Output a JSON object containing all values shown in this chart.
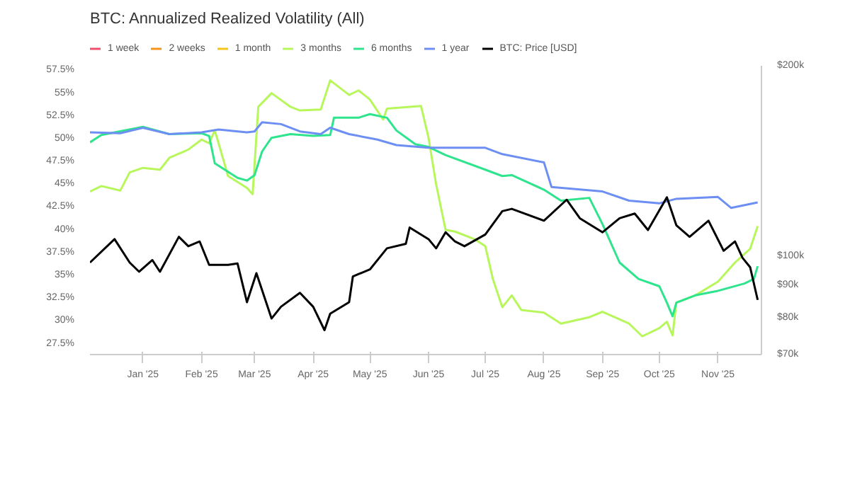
{
  "chart_data": {
    "type": "line",
    "title": "BTC: Annualized Realized Volatility (All)",
    "legend": "top",
    "grid": false,
    "line_style": "solid",
    "marker": "none",
    "xlim": [
      "2024-12-04",
      "2025-11-24"
    ],
    "xticks": [
      {
        "value": "2025-01-01",
        "label": "Jan '25"
      },
      {
        "value": "2025-02-01",
        "label": "Feb '25"
      },
      {
        "value": "2025-03-01",
        "label": "Mar '25"
      },
      {
        "value": "2025-04-01",
        "label": "Apr '25"
      },
      {
        "value": "2025-05-01",
        "label": "May '25"
      },
      {
        "value": "2025-06-01",
        "label": "Jun '25"
      },
      {
        "value": "2025-07-01",
        "label": "Jul '25"
      },
      {
        "value": "2025-08-01",
        "label": "Aug '25"
      },
      {
        "value": "2025-09-01",
        "label": "Sep '25"
      },
      {
        "value": "2025-10-01",
        "label": "Oct '25"
      },
      {
        "value": "2025-11-01",
        "label": "Nov '25"
      }
    ],
    "ylim": [
      26.3,
      58
    ],
    "yticks": [
      {
        "value": 27.5,
        "label": "27.5%"
      },
      {
        "value": 30,
        "label": "30%"
      },
      {
        "value": 32.5,
        "label": "32.5%"
      },
      {
        "value": 35,
        "label": "35%"
      },
      {
        "value": 37.5,
        "label": "37.5%"
      },
      {
        "value": 40,
        "label": "40%"
      },
      {
        "value": 42.5,
        "label": "42.5%"
      },
      {
        "value": 45,
        "label": "45%"
      },
      {
        "value": 47.5,
        "label": "47.5%"
      },
      {
        "value": 50,
        "label": "50%"
      },
      {
        "value": 52.5,
        "label": "52.5%"
      },
      {
        "value": 55,
        "label": "55%"
      },
      {
        "value": 57.5,
        "label": "57.5%"
      }
    ],
    "log": "y2",
    "y2lim": [
      70000,
      200000
    ],
    "y2ticks": [
      {
        "value": 70000,
        "label": "$70k"
      },
      {
        "value": 80000,
        "label": "$80k"
      },
      {
        "value": 90000,
        "label": "$90k"
      },
      {
        "value": 100000,
        "label": "$100k"
      },
      {
        "value": 200000,
        "label": "$200k"
      }
    ],
    "series": [
      {
        "name": "1 week",
        "color": "#f0506e"
      },
      {
        "name": "2 weeks",
        "color": "#f7931a"
      },
      {
        "name": "1 month",
        "color": "#f5c518"
      },
      {
        "name": "3 months",
        "color": "#b7f75c",
        "x": [
          "2024-12-04",
          "2024-12-10",
          "2024-12-20",
          "2024-12-25",
          "2025-01-01",
          "2025-01-10",
          "2025-01-15",
          "2025-01-25",
          "2025-02-01",
          "2025-02-05",
          "2025-02-08",
          "2025-02-10",
          "2025-02-15",
          "2025-02-25",
          "2025-02-28",
          "2025-03-03",
          "2025-03-10",
          "2025-03-20",
          "2025-03-25",
          "2025-04-05",
          "2025-04-10",
          "2025-04-20",
          "2025-04-25",
          "2025-05-01",
          "2025-05-08",
          "2025-05-10",
          "2025-05-28",
          "2025-06-01",
          "2025-06-05",
          "2025-06-10",
          "2025-06-15",
          "2025-06-25",
          "2025-07-01",
          "2025-07-05",
          "2025-07-10",
          "2025-07-15",
          "2025-07-20",
          "2025-08-01",
          "2025-08-10",
          "2025-08-25",
          "2025-09-01",
          "2025-09-15",
          "2025-09-22",
          "2025-10-01",
          "2025-10-05",
          "2025-10-08",
          "2025-10-10",
          "2025-10-20",
          "2025-11-01",
          "2025-11-10",
          "2025-11-18",
          "2025-11-22"
        ],
        "values": [
          44.2,
          44.8,
          44.3,
          46.3,
          46.8,
          46.6,
          47.9,
          48.8,
          49.9,
          49.5,
          50.9,
          49.5,
          45.9,
          44.6,
          43.9,
          53.5,
          55.0,
          53.5,
          53.1,
          53.2,
          56.4,
          54.8,
          55.3,
          54.3,
          52.1,
          53.3,
          53.6,
          50.1,
          45.0,
          40.0,
          39.8,
          39.0,
          38.2,
          34.6,
          31.5,
          32.8,
          31.2,
          30.9,
          29.7,
          30.4,
          31.0,
          29.7,
          28.3,
          29.2,
          29.9,
          28.4,
          32.0,
          32.8,
          34.3,
          36.4,
          37.9,
          40.4
        ]
      },
      {
        "name": "6 months",
        "color": "#2ee48c",
        "x": [
          "2024-12-04",
          "2024-12-10",
          "2025-01-01",
          "2025-01-15",
          "2025-02-01",
          "2025-02-05",
          "2025-02-08",
          "2025-02-20",
          "2025-02-25",
          "2025-03-01",
          "2025-03-05",
          "2025-03-10",
          "2025-03-20",
          "2025-04-01",
          "2025-04-10",
          "2025-04-12",
          "2025-04-25",
          "2025-05-01",
          "2025-05-10",
          "2025-05-15",
          "2025-05-25",
          "2025-06-01",
          "2025-06-10",
          "2025-07-01",
          "2025-07-10",
          "2025-07-15",
          "2025-08-01",
          "2025-08-10",
          "2025-08-25",
          "2025-09-01",
          "2025-09-10",
          "2025-09-20",
          "2025-10-01",
          "2025-10-05",
          "2025-10-08",
          "2025-10-10",
          "2025-10-20",
          "2025-11-01",
          "2025-11-15",
          "2025-11-20",
          "2025-11-22"
        ],
        "values": [
          49.6,
          50.4,
          51.3,
          50.5,
          50.6,
          50.3,
          47.3,
          45.7,
          45.4,
          46.0,
          48.6,
          50.1,
          50.5,
          50.3,
          50.4,
          52.3,
          52.3,
          52.7,
          52.3,
          50.9,
          49.4,
          49.1,
          48.2,
          46.6,
          45.9,
          46.0,
          44.4,
          43.2,
          43.5,
          40.6,
          36.4,
          34.6,
          33.8,
          32.0,
          30.5,
          32.0,
          32.8,
          33.3,
          34.1,
          34.6,
          36.0
        ]
      },
      {
        "name": "1 year",
        "color": "#6d8ff3",
        "x": [
          "2024-12-04",
          "2024-12-20",
          "2025-01-01",
          "2025-01-15",
          "2025-02-01",
          "2025-02-10",
          "2025-02-25",
          "2025-03-01",
          "2025-03-05",
          "2025-03-15",
          "2025-03-25",
          "2025-04-05",
          "2025-04-10",
          "2025-04-20",
          "2025-05-05",
          "2025-05-15",
          "2025-06-01",
          "2025-06-15",
          "2025-07-01",
          "2025-07-10",
          "2025-08-01",
          "2025-08-05",
          "2025-09-01",
          "2025-09-15",
          "2025-10-01",
          "2025-10-10",
          "2025-11-01",
          "2025-11-08",
          "2025-11-22"
        ],
        "values": [
          50.7,
          50.6,
          51.2,
          50.5,
          50.7,
          51.0,
          50.7,
          50.8,
          51.8,
          51.6,
          50.8,
          50.5,
          51.2,
          50.5,
          49.9,
          49.3,
          49.0,
          49.0,
          49.0,
          48.3,
          47.4,
          44.7,
          44.2,
          43.2,
          42.9,
          43.4,
          43.6,
          42.4,
          43.0
        ]
      },
      {
        "name": "BTC: Price [USD]",
        "color": "#000000",
        "axis": "y2",
        "x": [
          "2024-12-04",
          "2024-12-17",
          "2024-12-25",
          "2024-12-30",
          "2025-01-06",
          "2025-01-10",
          "2025-01-20",
          "2025-01-25",
          "2025-01-31",
          "2025-02-05",
          "2025-02-15",
          "2025-02-20",
          "2025-02-25",
          "2025-03-02",
          "2025-03-10",
          "2025-03-15",
          "2025-03-25",
          "2025-04-01",
          "2025-04-07",
          "2025-04-10",
          "2025-04-20",
          "2025-04-22",
          "2025-05-01",
          "2025-05-10",
          "2025-05-20",
          "2025-05-22",
          "2025-06-01",
          "2025-06-05",
          "2025-06-10",
          "2025-06-15",
          "2025-06-20",
          "2025-07-01",
          "2025-07-10",
          "2025-07-15",
          "2025-08-01",
          "2025-08-13",
          "2025-08-20",
          "2025-09-01",
          "2025-09-10",
          "2025-09-18",
          "2025-09-25",
          "2025-10-05",
          "2025-10-10",
          "2025-10-17",
          "2025-10-27",
          "2025-11-04",
          "2025-11-10",
          "2025-11-14",
          "2025-11-18",
          "2025-11-22"
        ],
        "values": [
          97800,
          106500,
          97800,
          94600,
          98700,
          94600,
          107400,
          103800,
          105600,
          97000,
          97000,
          97500,
          84700,
          94100,
          79800,
          83300,
          87600,
          83300,
          76500,
          81200,
          84700,
          93000,
          95400,
          103000,
          104700,
          111100,
          106500,
          103000,
          109200,
          105600,
          103800,
          108300,
          117900,
          118900,
          113900,
          122900,
          114900,
          109200,
          114900,
          116900,
          110100,
          124000,
          112000,
          107400,
          113900,
          102100,
          105600,
          99500,
          96200,
          85400
        ]
      }
    ]
  }
}
